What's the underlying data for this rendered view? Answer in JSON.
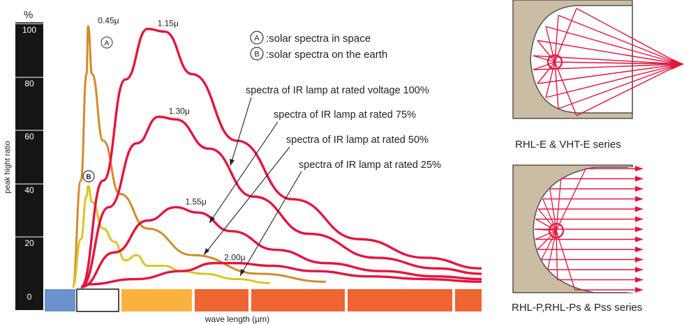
{
  "chart_data": {
    "type": "line",
    "xlabel": "wave length (μm)",
    "ylabel": "peak hight ratio",
    "y_unit": "%",
    "ylim": [
      0,
      100
    ],
    "y_ticks": [
      "0",
      "20",
      "40",
      "60",
      "80",
      "100"
    ],
    "grid": false,
    "legend": [
      {
        "marker": "A",
        "text": ":solar spectra in space"
      },
      {
        "marker": "B",
        "text": ":solar spectra on the earth"
      }
    ],
    "series": [
      {
        "marker": "A",
        "color": "#d4892a",
        "peak_label": "0.45μ",
        "points": [
          [
            0.5,
            0
          ],
          [
            2,
            40
          ],
          [
            3,
            80
          ],
          [
            3.3,
            98
          ],
          [
            4,
            80
          ],
          [
            6,
            55
          ],
          [
            9,
            35
          ],
          [
            14,
            22
          ],
          [
            22,
            12
          ],
          [
            34,
            5
          ],
          [
            46,
            2
          ]
        ]
      },
      {
        "marker": "B",
        "color": "#d8c624",
        "peak_label": "",
        "points": [
          [
            0.5,
            0
          ],
          [
            2,
            18
          ],
          [
            3,
            34
          ],
          [
            3.3,
            38
          ],
          [
            4,
            32
          ],
          [
            6,
            22
          ],
          [
            8,
            17
          ],
          [
            10,
            10
          ],
          [
            12,
            12
          ],
          [
            14,
            8
          ],
          [
            17,
            8
          ],
          [
            20,
            6
          ],
          [
            24,
            5
          ],
          [
            30,
            3
          ],
          [
            36,
            1.5
          ]
        ]
      },
      {
        "label": "spectra of IR lamp at rated voltage 100%",
        "color": "#e2163f",
        "peak_label": "1.15μ",
        "points": [
          [
            2,
            0
          ],
          [
            6,
            40
          ],
          [
            10,
            78
          ],
          [
            14,
            97
          ],
          [
            17,
            96
          ],
          [
            22,
            80
          ],
          [
            30,
            55
          ],
          [
            40,
            33
          ],
          [
            52,
            18
          ],
          [
            64,
            11
          ],
          [
            74,
            7
          ]
        ]
      },
      {
        "label": "spectra of IR lamp at rated 75%",
        "color": "#e2163f",
        "peak_label": "1.30μ",
        "points": [
          [
            2,
            0
          ],
          [
            7,
            30
          ],
          [
            12,
            54
          ],
          [
            16,
            64
          ],
          [
            19,
            63
          ],
          [
            25,
            52
          ],
          [
            33,
            34
          ],
          [
            43,
            20
          ],
          [
            55,
            11
          ],
          [
            66,
            7
          ],
          [
            74,
            5
          ]
        ]
      },
      {
        "label": "spectra of IR lamp at rated 50%",
        "color": "#e2163f",
        "peak_label": "1.55μ",
        "points": [
          [
            2,
            0
          ],
          [
            8,
            13
          ],
          [
            14,
            25
          ],
          [
            19,
            30
          ],
          [
            23,
            28
          ],
          [
            29,
            21
          ],
          [
            37,
            14
          ],
          [
            46,
            9
          ],
          [
            56,
            6
          ],
          [
            66,
            4
          ],
          [
            74,
            3
          ]
        ]
      },
      {
        "label": "spectra of IR lamp at rated 25%",
        "color": "#e2163f",
        "peak_label": "2.00μ",
        "points": [
          [
            3,
            1
          ],
          [
            12,
            3
          ],
          [
            20,
            6
          ],
          [
            26,
            9
          ],
          [
            30,
            9
          ],
          [
            36,
            8
          ],
          [
            44,
            6
          ],
          [
            54,
            4
          ],
          [
            64,
            3
          ],
          [
            74,
            2
          ]
        ]
      }
    ],
    "color_bands": [
      "#6a92cc",
      "#ffffff",
      "#fbb13e",
      "#ef6433",
      "#ef6433",
      "#ef6433",
      "#ef6433"
    ]
  },
  "diagrams": [
    {
      "caption": "RHL-E & VHT-E  series",
      "beam": "focused",
      "color": "#e2163f",
      "body_color": "#cbbca4"
    },
    {
      "caption": "RHL-P,RHL-Ps & Pss  series",
      "beam": "parallel",
      "color": "#e2163f",
      "body_color": "#cbbca4"
    }
  ]
}
